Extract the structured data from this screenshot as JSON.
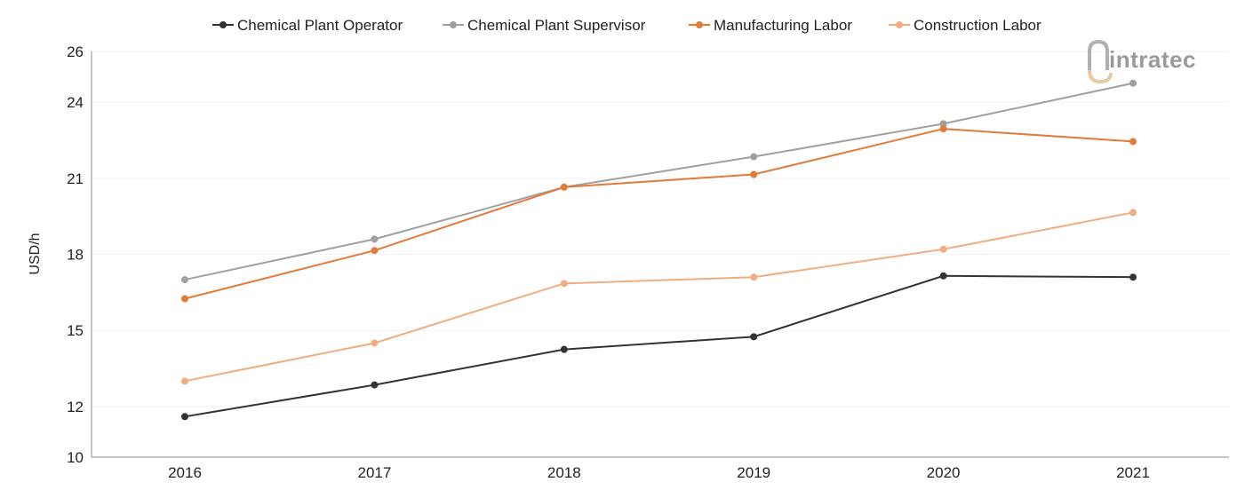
{
  "logo": {
    "text": "intratec",
    "accent_color": "#e8c9a6",
    "text_color": "#9a9a9a"
  },
  "chart_data": {
    "type": "line",
    "categories": [
      "2016",
      "2017",
      "2018",
      "2019",
      "2020",
      "2021"
    ],
    "ylabel": "USD/h",
    "xlabel": "",
    "ylim": [
      10,
      26
    ],
    "yticks": [
      10,
      12,
      15,
      18,
      21,
      24,
      26
    ],
    "legend_position": "top-center",
    "grid": true,
    "series": [
      {
        "name": "Chemical Plant Operator",
        "color": "#333333",
        "values": [
          11.6,
          12.85,
          14.25,
          14.75,
          17.15,
          17.1
        ]
      },
      {
        "name": "Chemical Plant Supervisor",
        "color": "#a0a0a0",
        "values": [
          17.0,
          18.6,
          20.65,
          21.85,
          23.15,
          24.75
        ]
      },
      {
        "name": "Manufacturing Labor",
        "color": "#e07b39",
        "values": [
          16.25,
          18.15,
          20.65,
          21.15,
          22.95,
          22.45
        ]
      },
      {
        "name": "Construction Labor",
        "color": "#f0ae80",
        "values": [
          13.0,
          14.5,
          16.85,
          17.1,
          18.2,
          19.65
        ]
      }
    ]
  }
}
